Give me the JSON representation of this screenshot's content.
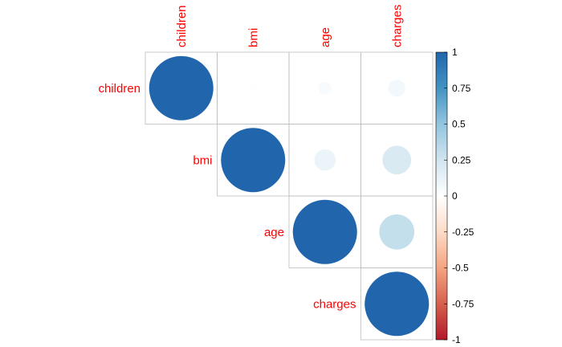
{
  "chart_data": {
    "type": "correlation-matrix",
    "variables": [
      "children",
      "bmi",
      "age",
      "charges"
    ],
    "triangle": "upper",
    "method": "circle",
    "matrix": [
      [
        1.0,
        0.01,
        0.04,
        0.07
      ],
      [
        0.01,
        1.0,
        0.11,
        0.2
      ],
      [
        0.04,
        0.11,
        1.0,
        0.3
      ],
      [
        0.07,
        0.2,
        0.3,
        1.0
      ]
    ],
    "colorbar": {
      "range": [
        -1,
        1
      ],
      "tick_labels": [
        "1",
        "0.75",
        "0.5",
        "0.25",
        "0",
        "-0.25",
        "-0.5",
        "-0.75",
        "-1"
      ],
      "colors": [
        "#B2182B",
        "#D6604D",
        "#F4A582",
        "#FDDBC7",
        "#FFFFFF",
        "#D1E5F0",
        "#92C5DE",
        "#4393C3",
        "#2166AC"
      ]
    },
    "label_color": "#FF0000",
    "grid_color": "#BEBEBE"
  }
}
